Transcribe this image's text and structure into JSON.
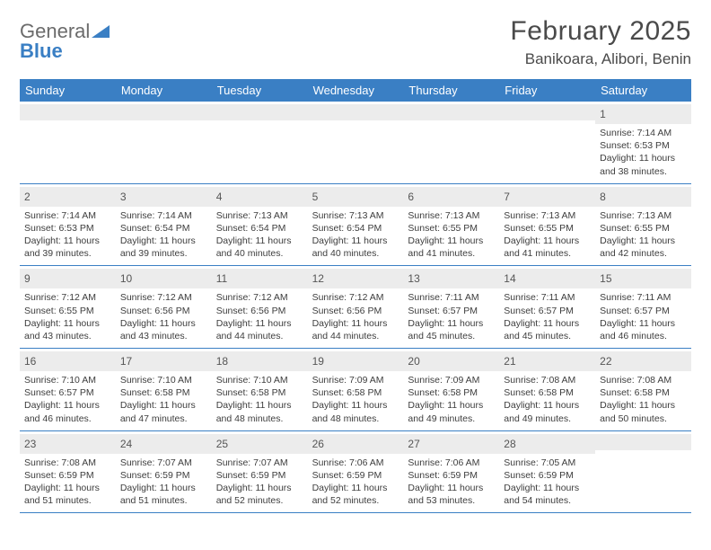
{
  "logo": {
    "word1": "General",
    "word2": "Blue"
  },
  "title": "February 2025",
  "location": "Banikoara, Alibori, Benin",
  "colors": {
    "header_bar": "#3a7fc4",
    "daynum_bg": "#ececec",
    "rule": "#3a7fc4",
    "text": "#3a3a3a",
    "logo_gray": "#6b6b6b",
    "logo_blue": "#3a7fc4"
  },
  "dow": [
    "Sunday",
    "Monday",
    "Tuesday",
    "Wednesday",
    "Thursday",
    "Friday",
    "Saturday"
  ],
  "weeks": [
    [
      null,
      null,
      null,
      null,
      null,
      null,
      {
        "n": "1",
        "sr": "7:14 AM",
        "ss": "6:53 PM",
        "dl": "11 hours and 38 minutes."
      }
    ],
    [
      {
        "n": "2",
        "sr": "7:14 AM",
        "ss": "6:53 PM",
        "dl": "11 hours and 39 minutes."
      },
      {
        "n": "3",
        "sr": "7:14 AM",
        "ss": "6:54 PM",
        "dl": "11 hours and 39 minutes."
      },
      {
        "n": "4",
        "sr": "7:13 AM",
        "ss": "6:54 PM",
        "dl": "11 hours and 40 minutes."
      },
      {
        "n": "5",
        "sr": "7:13 AM",
        "ss": "6:54 PM",
        "dl": "11 hours and 40 minutes."
      },
      {
        "n": "6",
        "sr": "7:13 AM",
        "ss": "6:55 PM",
        "dl": "11 hours and 41 minutes."
      },
      {
        "n": "7",
        "sr": "7:13 AM",
        "ss": "6:55 PM",
        "dl": "11 hours and 41 minutes."
      },
      {
        "n": "8",
        "sr": "7:13 AM",
        "ss": "6:55 PM",
        "dl": "11 hours and 42 minutes."
      }
    ],
    [
      {
        "n": "9",
        "sr": "7:12 AM",
        "ss": "6:55 PM",
        "dl": "11 hours and 43 minutes."
      },
      {
        "n": "10",
        "sr": "7:12 AM",
        "ss": "6:56 PM",
        "dl": "11 hours and 43 minutes."
      },
      {
        "n": "11",
        "sr": "7:12 AM",
        "ss": "6:56 PM",
        "dl": "11 hours and 44 minutes."
      },
      {
        "n": "12",
        "sr": "7:12 AM",
        "ss": "6:56 PM",
        "dl": "11 hours and 44 minutes."
      },
      {
        "n": "13",
        "sr": "7:11 AM",
        "ss": "6:57 PM",
        "dl": "11 hours and 45 minutes."
      },
      {
        "n": "14",
        "sr": "7:11 AM",
        "ss": "6:57 PM",
        "dl": "11 hours and 45 minutes."
      },
      {
        "n": "15",
        "sr": "7:11 AM",
        "ss": "6:57 PM",
        "dl": "11 hours and 46 minutes."
      }
    ],
    [
      {
        "n": "16",
        "sr": "7:10 AM",
        "ss": "6:57 PM",
        "dl": "11 hours and 46 minutes."
      },
      {
        "n": "17",
        "sr": "7:10 AM",
        "ss": "6:58 PM",
        "dl": "11 hours and 47 minutes."
      },
      {
        "n": "18",
        "sr": "7:10 AM",
        "ss": "6:58 PM",
        "dl": "11 hours and 48 minutes."
      },
      {
        "n": "19",
        "sr": "7:09 AM",
        "ss": "6:58 PM",
        "dl": "11 hours and 48 minutes."
      },
      {
        "n": "20",
        "sr": "7:09 AM",
        "ss": "6:58 PM",
        "dl": "11 hours and 49 minutes."
      },
      {
        "n": "21",
        "sr": "7:08 AM",
        "ss": "6:58 PM",
        "dl": "11 hours and 49 minutes."
      },
      {
        "n": "22",
        "sr": "7:08 AM",
        "ss": "6:58 PM",
        "dl": "11 hours and 50 minutes."
      }
    ],
    [
      {
        "n": "23",
        "sr": "7:08 AM",
        "ss": "6:59 PM",
        "dl": "11 hours and 51 minutes."
      },
      {
        "n": "24",
        "sr": "7:07 AM",
        "ss": "6:59 PM",
        "dl": "11 hours and 51 minutes."
      },
      {
        "n": "25",
        "sr": "7:07 AM",
        "ss": "6:59 PM",
        "dl": "11 hours and 52 minutes."
      },
      {
        "n": "26",
        "sr": "7:06 AM",
        "ss": "6:59 PM",
        "dl": "11 hours and 52 minutes."
      },
      {
        "n": "27",
        "sr": "7:06 AM",
        "ss": "6:59 PM",
        "dl": "11 hours and 53 minutes."
      },
      {
        "n": "28",
        "sr": "7:05 AM",
        "ss": "6:59 PM",
        "dl": "11 hours and 54 minutes."
      },
      null
    ]
  ],
  "labels": {
    "sunrise": "Sunrise:",
    "sunset": "Sunset:",
    "daylight": "Daylight:"
  }
}
